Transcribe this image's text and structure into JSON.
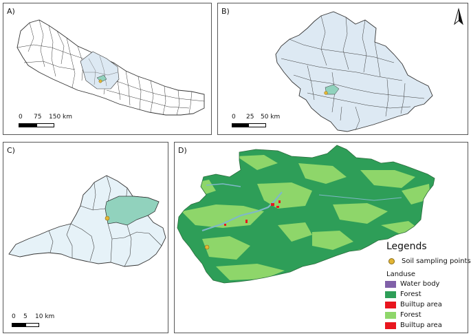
{
  "panels": {
    "a": {
      "label": "A)",
      "scale": {
        "ticks": [
          "0",
          "75",
          "150 km"
        ]
      }
    },
    "b": {
      "label": "B)",
      "scale": {
        "ticks": [
          "0",
          "25",
          "50 km"
        ]
      }
    },
    "c": {
      "label": "C)",
      "scale": {
        "ticks": [
          "0",
          "5",
          "10 km"
        ]
      }
    },
    "d": {
      "label": "D)"
    }
  },
  "north_arrow": {
    "icon": "north-arrow-icon"
  },
  "legend": {
    "title": "Legends",
    "point_label": "Soil sampling points",
    "landuse_title": "Landuse",
    "classes": [
      {
        "label": "Water body",
        "color": "#8060a8"
      },
      {
        "label": "Forest",
        "color": "#2e9e58"
      },
      {
        "label": "Builtup area",
        "color": "#e8161e"
      },
      {
        "label": "Forest",
        "color": "#8ed66a"
      },
      {
        "label": "Builtup area",
        "color": "#e8161e"
      }
    ]
  },
  "colors": {
    "district_fill_light": "#dde9f3",
    "highlight_fill": "#91d2bd",
    "forest": "#2e9e58",
    "forest_light": "#8ed66a",
    "water": "#7fb8c8",
    "builtup": "#e8161e",
    "sample_point": "#e3b534"
  }
}
